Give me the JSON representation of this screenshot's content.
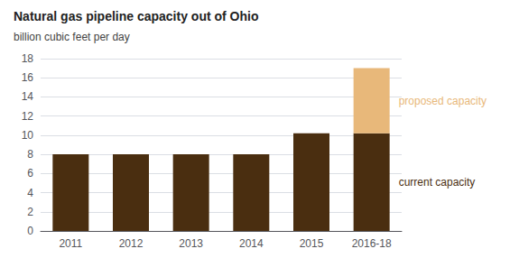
{
  "chart_data": {
    "type": "bar",
    "title": "Natural gas pipeline capacity out of Ohio",
    "subtitle": "billion cubic feet per day",
    "categories": [
      "2011",
      "2012",
      "2013",
      "2014",
      "2015",
      "2016-18"
    ],
    "series": [
      {
        "name": "current capacity",
        "color": "#4a2e10",
        "values": [
          8.0,
          8.0,
          8.0,
          8.0,
          10.2,
          10.2
        ]
      },
      {
        "name": "proposed capacity",
        "color": "#e8b87a",
        "values": [
          0,
          0,
          0,
          0,
          0,
          6.8
        ]
      }
    ],
    "stacked": true,
    "ylim": [
      0,
      18
    ],
    "yticks": [
      0,
      2,
      4,
      6,
      8,
      10,
      12,
      14,
      16,
      18
    ],
    "grid": true
  }
}
